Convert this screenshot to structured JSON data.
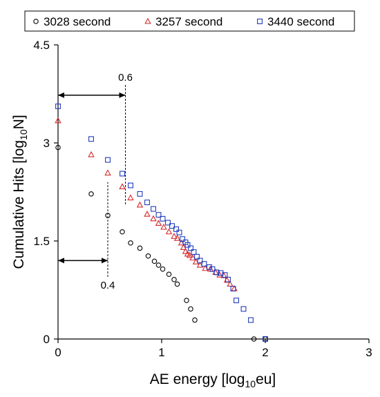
{
  "chart_data": {
    "type": "scatter",
    "xlabel": {
      "main": "AE energy [log",
      "sub": "10",
      "tail": "eu]"
    },
    "ylabel": {
      "main": "Cumulative Hits [log",
      "sub": "10",
      "tail": "N]"
    },
    "xlim": [
      0,
      3
    ],
    "ylim": [
      0,
      4.5
    ],
    "x_ticks": [
      0,
      1,
      2,
      3
    ],
    "x_tick_labels": [
      "0",
      "1",
      "2",
      "3"
    ],
    "y_ticks": [
      0,
      1.5,
      3,
      4.5
    ],
    "y_tick_labels": [
      "0",
      "1.5",
      "3",
      "4.5"
    ],
    "grid": false,
    "legend_position": "top",
    "series": [
      {
        "name": "3028 second",
        "marker": "circle",
        "color": "#000000",
        "points": [
          [
            0,
            2.93
          ],
          [
            0.32,
            2.22
          ],
          [
            0.48,
            1.89
          ],
          [
            0.62,
            1.64
          ],
          [
            0.7,
            1.47
          ],
          [
            0.79,
            1.39
          ],
          [
            0.87,
            1.27
          ],
          [
            0.93,
            1.19
          ],
          [
            0.97,
            1.13
          ],
          [
            1.01,
            1.07
          ],
          [
            1.07,
            0.99
          ],
          [
            1.12,
            0.91
          ],
          [
            1.15,
            0.84
          ],
          [
            1.24,
            0.59
          ],
          [
            1.28,
            0.46
          ],
          [
            1.32,
            0.29
          ],
          [
            1.89,
            0
          ],
          [
            2.0,
            0
          ]
        ]
      },
      {
        "name": "3257 second",
        "marker": "triangle",
        "color": "#d62728",
        "points": [
          [
            0,
            3.34
          ],
          [
            0.32,
            2.82
          ],
          [
            0.48,
            2.54
          ],
          [
            0.62,
            2.33
          ],
          [
            0.7,
            2.16
          ],
          [
            0.79,
            2.05
          ],
          [
            0.86,
            1.91
          ],
          [
            0.92,
            1.84
          ],
          [
            0.97,
            1.77
          ],
          [
            1.02,
            1.71
          ],
          [
            1.07,
            1.64
          ],
          [
            1.12,
            1.57
          ],
          [
            1.15,
            1.54
          ],
          [
            1.19,
            1.47
          ],
          [
            1.21,
            1.4
          ],
          [
            1.23,
            1.34
          ],
          [
            1.25,
            1.3
          ],
          [
            1.27,
            1.28
          ],
          [
            1.3,
            1.24
          ],
          [
            1.33,
            1.18
          ],
          [
            1.37,
            1.13
          ],
          [
            1.42,
            1.08
          ],
          [
            1.47,
            1.07
          ],
          [
            1.52,
            1.02
          ],
          [
            1.56,
            0.98
          ],
          [
            1.6,
            0.97
          ],
          [
            1.63,
            0.9
          ],
          [
            1.66,
            0.84
          ],
          [
            1.7,
            0.77
          ]
        ]
      },
      {
        "name": "3440 second",
        "marker": "square",
        "color": "#1f3bbd",
        "points": [
          [
            0,
            3.56
          ],
          [
            0.32,
            3.06
          ],
          [
            0.48,
            2.74
          ],
          [
            0.62,
            2.53
          ],
          [
            0.7,
            2.35
          ],
          [
            0.79,
            2.22
          ],
          [
            0.86,
            2.09
          ],
          [
            0.92,
            1.99
          ],
          [
            0.97,
            1.9
          ],
          [
            1.01,
            1.84
          ],
          [
            1.06,
            1.78
          ],
          [
            1.1,
            1.73
          ],
          [
            1.14,
            1.68
          ],
          [
            1.17,
            1.63
          ],
          [
            1.2,
            1.53
          ],
          [
            1.23,
            1.48
          ],
          [
            1.25,
            1.44
          ],
          [
            1.28,
            1.39
          ],
          [
            1.31,
            1.33
          ],
          [
            1.34,
            1.26
          ],
          [
            1.37,
            1.2
          ],
          [
            1.41,
            1.15
          ],
          [
            1.46,
            1.1
          ],
          [
            1.49,
            1.07
          ],
          [
            1.53,
            1.02
          ],
          [
            1.57,
            1.01
          ],
          [
            1.61,
            0.98
          ],
          [
            1.64,
            0.91
          ],
          [
            1.69,
            0.77
          ],
          [
            1.72,
            0.59
          ],
          [
            1.79,
            0.46
          ],
          [
            1.86,
            0.29
          ],
          [
            2.0,
            0
          ]
        ]
      }
    ],
    "annotations": [
      {
        "label": "0.6",
        "arrow_y": 3.73,
        "arrow_x_from": 0,
        "arrow_x_to": 0.65,
        "dashed_x": 0.65,
        "dashed_y_from": 2.06,
        "dashed_y_to": 3.9
      },
      {
        "label": "0.4",
        "arrow_y": 1.2,
        "arrow_x_from": 0,
        "arrow_x_to": 0.48,
        "dashed_x": 0.48,
        "dashed_y_from": 0.95,
        "dashed_y_to": 2.4
      }
    ]
  }
}
